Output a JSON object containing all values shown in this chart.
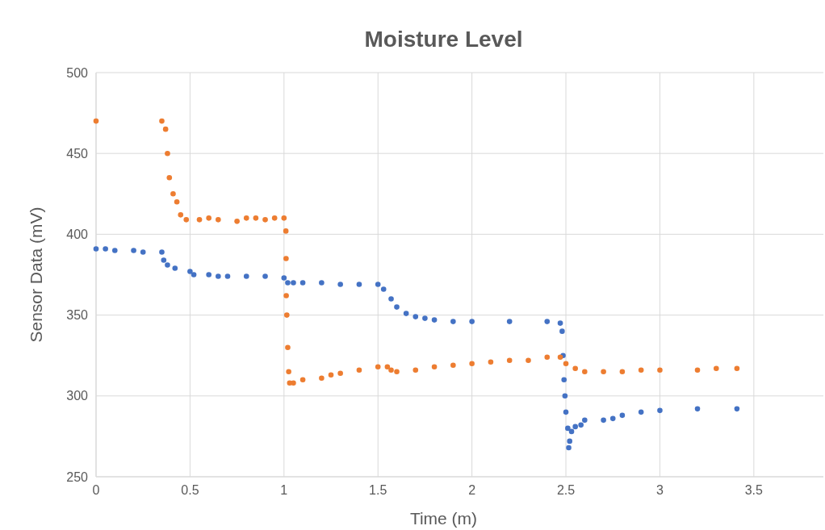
{
  "chart_data": {
    "type": "scatter",
    "title": "Moisture Level",
    "xlabel": "Time (m)",
    "ylabel": "Sensor Data (mV)",
    "xlim": [
      0,
      3.87
    ],
    "xticks": [
      0,
      0.5,
      1,
      1.5,
      2,
      2.5,
      3,
      3.5
    ],
    "ylim": [
      250,
      500
    ],
    "yticks": [
      250,
      300,
      350,
      400,
      450,
      500
    ],
    "grid": true,
    "marker": "circle",
    "series": [
      {
        "color": "#4472c4",
        "x": [
          0,
          0.05,
          0.1,
          0.2,
          0.25,
          0.35,
          0.36,
          0.38,
          0.42,
          0.5,
          0.52,
          0.6,
          0.65,
          0.7,
          0.8,
          0.9,
          1.0,
          1.02,
          1.05,
          1.1,
          1.2,
          1.3,
          1.4,
          1.5,
          1.53,
          1.57,
          1.6,
          1.65,
          1.7,
          1.75,
          1.8,
          1.9,
          2.0,
          2.2,
          2.4,
          2.47,
          2.48,
          2.485,
          2.49,
          2.495,
          2.5,
          2.51,
          2.515,
          2.52,
          2.53,
          2.55,
          2.58,
          2.6,
          2.7,
          2.75,
          2.8,
          2.9,
          3.0,
          3.2,
          3.41
        ],
        "values": [
          391,
          391,
          390,
          390,
          389,
          389,
          384,
          381,
          379,
          377,
          375,
          375,
          374,
          374,
          374,
          374,
          373,
          370,
          370,
          370,
          370,
          369,
          369,
          369,
          366,
          360,
          355,
          351,
          349,
          348,
          347,
          346,
          346,
          346,
          346,
          345,
          340,
          325,
          310,
          300,
          290,
          280,
          268,
          272,
          278,
          281,
          282,
          285,
          285,
          286,
          288,
          290,
          291,
          292,
          292
        ]
      },
      {
        "color": "#ed7d31",
        "x": [
          0,
          0.35,
          0.37,
          0.38,
          0.39,
          0.41,
          0.43,
          0.45,
          0.48,
          0.55,
          0.6,
          0.65,
          0.75,
          0.8,
          0.85,
          0.9,
          0.95,
          1.0,
          1.01,
          1.011,
          1.012,
          1.015,
          1.02,
          1.025,
          1.03,
          1.05,
          1.1,
          1.2,
          1.25,
          1.3,
          1.4,
          1.5,
          1.55,
          1.57,
          1.6,
          1.7,
          1.8,
          1.9,
          2.0,
          2.1,
          2.2,
          2.3,
          2.4,
          2.47,
          2.5,
          2.55,
          2.6,
          2.7,
          2.8,
          2.9,
          3.0,
          3.2,
          3.3,
          3.41
        ],
        "values": [
          470,
          470,
          465,
          450,
          435,
          425,
          420,
          412,
          409,
          409,
          410,
          409,
          408,
          410,
          410,
          409,
          410,
          410,
          402,
          385,
          362,
          350,
          330,
          315,
          308,
          308,
          310,
          311,
          313,
          314,
          316,
          318,
          318,
          316,
          315,
          316,
          318,
          319,
          320,
          321,
          322,
          322,
          324,
          324,
          320,
          317,
          315,
          315,
          315,
          316,
          316,
          316,
          317,
          317
        ]
      }
    ]
  }
}
